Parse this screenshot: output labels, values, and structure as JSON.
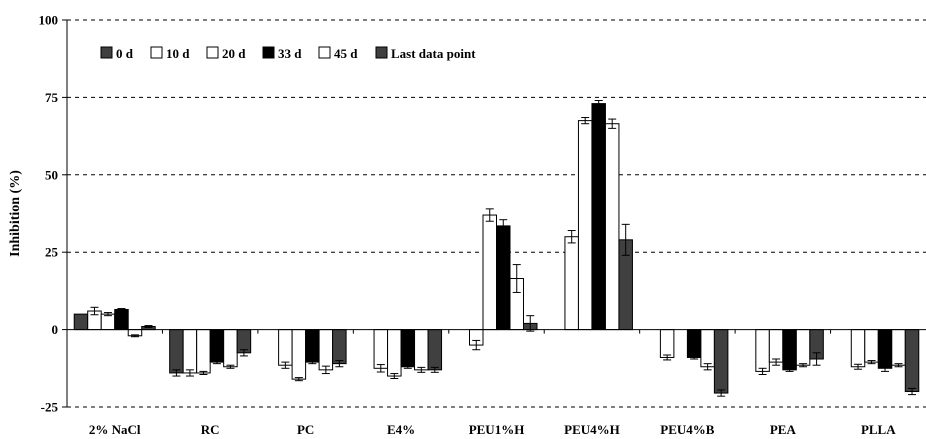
{
  "chart_data": {
    "type": "bar",
    "title": "",
    "xlabel": "",
    "ylabel": "Inhibition (%)",
    "ylim": [
      -25,
      100
    ],
    "yticks": [
      -25,
      0,
      25,
      50,
      75,
      100
    ],
    "grid": "horizontal dashed",
    "legend_position": "top-left",
    "categories": [
      "2% NaCl",
      "RC",
      "PC",
      "E4%",
      "PEU1%H",
      "PEU4%H",
      "PEU4%B",
      "PEA",
      "PLLA"
    ],
    "series": [
      {
        "name": "0 d",
        "color": "#404040",
        "values": [
          5,
          -14,
          null,
          null,
          null,
          null,
          null,
          null,
          null
        ],
        "errors": [
          0,
          1,
          null,
          null,
          null,
          null,
          null,
          null,
          null
        ]
      },
      {
        "name": "10 d",
        "color": "#ffffff",
        "values": [
          6,
          -14,
          -11.5,
          -12.5,
          -5,
          30,
          -9,
          -13.5,
          -12
        ],
        "errors": [
          1.2,
          1,
          1,
          1.2,
          1.5,
          2,
          0.8,
          1,
          0.8
        ]
      },
      {
        "name": "20 d",
        "color": "#ffffff",
        "values": [
          5,
          -14,
          -16,
          -15,
          37,
          67.5,
          null,
          -10.5,
          -10.5
        ],
        "errors": [
          0.5,
          0.5,
          0.5,
          0.8,
          2,
          1,
          null,
          1,
          0.5
        ]
      },
      {
        "name": "33 d",
        "color": "#000000",
        "values": [
          6.5,
          -10.5,
          -10.5,
          -12,
          33.5,
          73,
          -9,
          -13,
          -12.5
        ],
        "errors": [
          0.3,
          0.5,
          0.5,
          0.5,
          2,
          1,
          0.5,
          0.5,
          1
        ]
      },
      {
        "name": "45 d",
        "color": "#ffffff",
        "values": [
          -2,
          -12,
          -13,
          -13,
          16.5,
          66.5,
          -12,
          -11.5,
          -11.5
        ],
        "errors": [
          0.3,
          0.5,
          1.2,
          0.8,
          4.5,
          1.5,
          1,
          0.5,
          0.5
        ]
      },
      {
        "name": "Last data point",
        "color": "#404040",
        "values": [
          1,
          -7.5,
          -11,
          -13,
          2,
          29,
          -20.5,
          -9.5,
          -20
        ],
        "errors": [
          0.3,
          1,
          1,
          0.8,
          2.5,
          5,
          1,
          2,
          1
        ]
      }
    ]
  }
}
